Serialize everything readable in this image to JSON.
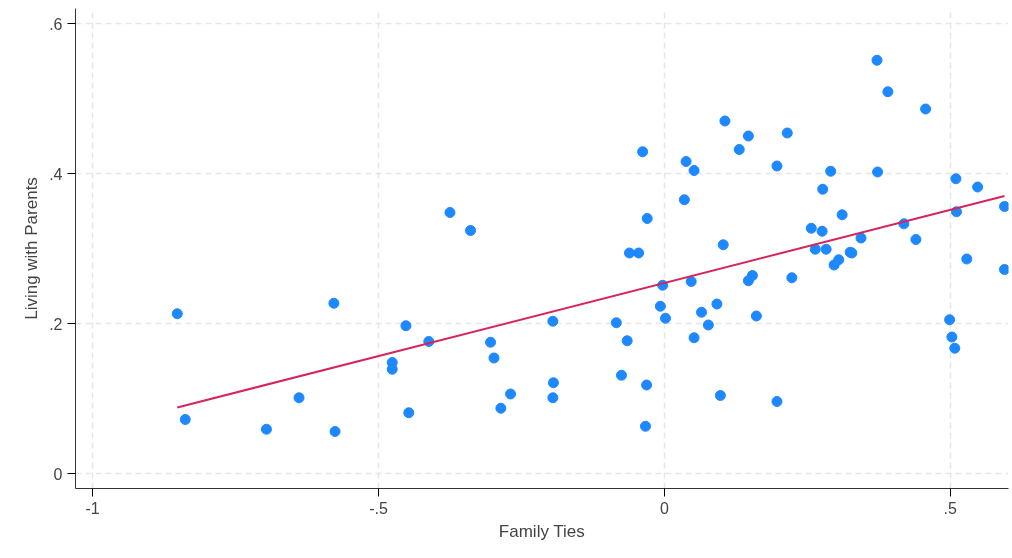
{
  "chart_data": {
    "type": "scatter",
    "xlabel": "Family Ties",
    "ylabel": "Living with Parents",
    "xlim": [
      -1.03,
      0.602
    ],
    "ylim": [
      -0.02,
      0.62
    ],
    "xticks": [
      {
        "value": -1,
        "label": "-1"
      },
      {
        "value": -0.5,
        "label": "-.5"
      },
      {
        "value": 0,
        "label": "0"
      },
      {
        "value": 0.5,
        "label": ".5"
      }
    ],
    "yticks": [
      {
        "value": 0,
        "label": "0"
      },
      {
        "value": 0.2,
        "label": ".2"
      },
      {
        "value": 0.4,
        "label": ".4"
      },
      {
        "value": 0.6,
        "label": ".6"
      }
    ],
    "grid": true,
    "series": [
      {
        "color": "#1e88ff",
        "marker": "circle",
        "x": [
          -0.852,
          -0.838,
          -0.696,
          -0.639,
          -0.576,
          -0.578,
          -0.375,
          -0.339,
          -0.452,
          -0.412,
          -0.476,
          -0.476,
          -0.447,
          -0.304,
          -0.298,
          -0.269,
          -0.286,
          0.372,
          0.391,
          0.457,
          0.106,
          0.147,
          0.131,
          0.215,
          -0.038,
          0.038,
          0.052,
          0.197,
          0.291,
          0.373,
          0.51,
          0.548,
          0.035,
          0.277,
          0.595,
          -0.03,
          0.311,
          0.511,
          0.257,
          0.276,
          0.103,
          0.344,
          0.419,
          0.44,
          -0.061,
          -0.045,
          0.264,
          0.283,
          0.325,
          0.328,
          0.529,
          0.305,
          0.297,
          0.595,
          0.147,
          0.154,
          0.047,
          0.223,
          -0.003,
          -0.195,
          -0.084,
          -0.065,
          -0.007,
          0.002,
          0.065,
          0.092,
          0.077,
          0.052,
          0.161,
          0.499,
          0.503,
          0.508,
          -0.194,
          -0.195,
          -0.075,
          -0.031,
          0.098,
          0.197,
          -0.033
        ],
        "values": [
          0.213,
          0.072,
          0.059,
          0.101,
          0.056,
          0.227,
          0.348,
          0.324,
          0.197,
          0.176,
          0.148,
          0.139,
          0.081,
          0.175,
          0.154,
          0.106,
          0.087,
          0.551,
          0.509,
          0.486,
          0.47,
          0.45,
          0.432,
          0.454,
          0.429,
          0.416,
          0.404,
          0.41,
          0.403,
          0.402,
          0.393,
          0.382,
          0.365,
          0.379,
          0.356,
          0.34,
          0.345,
          0.349,
          0.327,
          0.323,
          0.305,
          0.314,
          0.333,
          0.312,
          0.294,
          0.294,
          0.299,
          0.299,
          0.295,
          0.294,
          0.286,
          0.285,
          0.278,
          0.272,
          0.257,
          0.264,
          0.256,
          0.261,
          0.251,
          0.203,
          0.201,
          0.177,
          0.223,
          0.207,
          0.215,
          0.226,
          0.198,
          0.181,
          0.21,
          0.205,
          0.182,
          0.167,
          0.121,
          0.101,
          0.131,
          0.118,
          0.104,
          0.096,
          0.063
        ]
      },
      {
        "type": "line",
        "color": "#d6245c",
        "x": [
          -0.852,
          0.595
        ],
        "values": [
          0.088,
          0.37
        ]
      }
    ]
  }
}
